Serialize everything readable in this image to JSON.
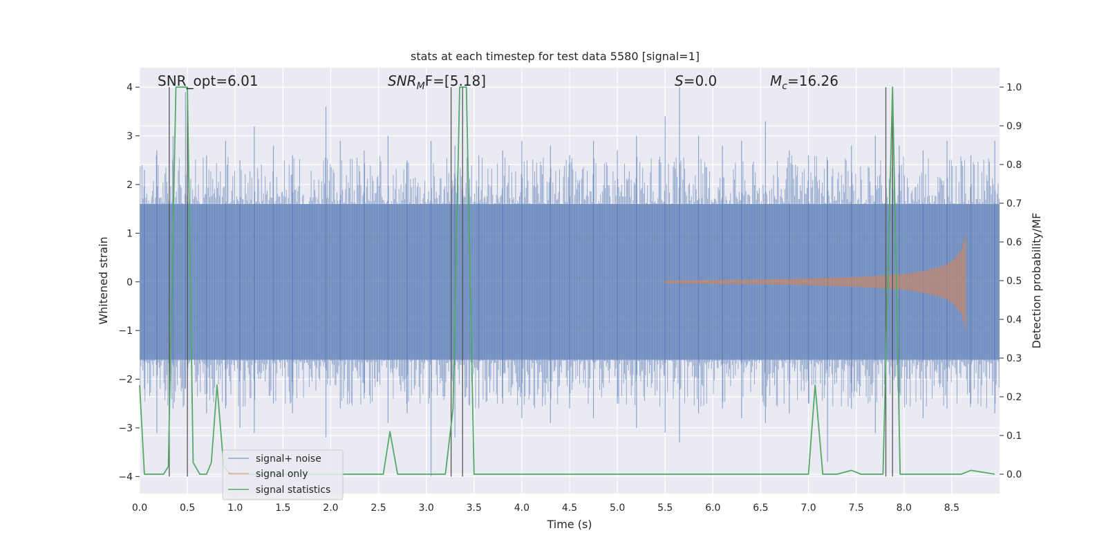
{
  "chart_data": {
    "type": "line",
    "title": "stats at each timestep for test data 5580 [signal=1]",
    "xlabel": "Time (s)",
    "ylabel_left": "Whitened strain",
    "ylabel_right": "Detection probability/MF",
    "xlim": [
      0.0,
      9.0
    ],
    "ylim_left": [
      -4.35,
      4.4
    ],
    "ylim_right": [
      -0.05,
      1.05
    ],
    "x_ticks": [
      "0.0",
      "0.5",
      "1.0",
      "1.5",
      "2.0",
      "2.5",
      "3.0",
      "3.5",
      "4.0",
      "4.5",
      "5.0",
      "5.5",
      "6.0",
      "6.5",
      "7.0",
      "7.5",
      "8.0",
      "8.5"
    ],
    "y_ticks_left": [
      "4",
      "3",
      "2",
      "1",
      "0",
      "−1",
      "−2",
      "−3",
      "−4"
    ],
    "y_ticks_right": [
      "1.0",
      "0.9",
      "0.8",
      "0.7",
      "0.6",
      "0.5",
      "0.4",
      "0.3",
      "0.2",
      "0.1",
      "0.0"
    ],
    "grid": true,
    "legend_position": "lower-left",
    "annotations": {
      "snr_opt": "SNR_opt=6.01",
      "snr_mf_prefix": "SNR",
      "snr_mf_sub": "M",
      "snr_mf_rest": "F=[5.18]",
      "s_var": "S",
      "s_rest": "=0.0",
      "mc_var": "M",
      "mc_sub": "c",
      "mc_rest": "=16.26"
    },
    "vertical_lines_x": [
      0.31,
      0.5,
      3.26,
      3.38,
      7.81,
      7.88
    ],
    "series": [
      {
        "name": "signal+ noise",
        "color": "#4c72b0",
        "note_axis": "left",
        "band_lower": -1.6,
        "band_upper": 1.6,
        "peak_x": [
          0.05,
          0.18,
          0.35,
          0.48,
          0.7,
          0.9,
          1.05,
          1.2,
          1.4,
          1.6,
          1.95,
          2.1,
          2.35,
          2.6,
          2.8,
          3.05,
          3.3,
          3.55,
          3.8,
          4.0,
          4.3,
          4.5,
          4.75,
          5.0,
          5.2,
          5.5,
          5.65,
          5.85,
          6.1,
          6.3,
          6.55,
          6.8,
          7.0,
          7.2,
          7.45,
          7.7,
          7.95,
          8.2,
          8.45,
          8.7,
          8.95
        ],
        "peak_high": [
          2.3,
          2.7,
          3.0,
          3.9,
          2.6,
          2.9,
          2.5,
          3.2,
          2.8,
          2.6,
          3.6,
          2.9,
          2.7,
          3.0,
          2.5,
          2.9,
          2.8,
          2.6,
          2.7,
          2.9,
          2.8,
          2.6,
          2.9,
          2.7,
          3.0,
          3.4,
          4.0,
          3.0,
          2.8,
          2.9,
          3.3,
          2.7,
          2.6,
          2.5,
          2.8,
          3.0,
          2.8,
          2.7,
          2.9,
          2.6,
          2.9
        ],
        "peak_low": [
          -2.2,
          -3.1,
          -2.6,
          -2.2,
          -2.7,
          -2.6,
          -3.0,
          -3.1,
          -2.5,
          -2.7,
          -3.2,
          -2.6,
          -2.4,
          -2.9,
          -2.7,
          -4.0,
          -3.2,
          -2.6,
          -2.5,
          -2.8,
          -2.9,
          -2.6,
          -2.8,
          -2.5,
          -3.0,
          -3.1,
          -3.3,
          -2.7,
          -2.6,
          -2.8,
          -2.9,
          -2.7,
          -2.5,
          -3.7,
          -2.6,
          -3.1,
          -2.9,
          -2.8,
          -2.6,
          -2.5,
          -2.7
        ]
      },
      {
        "name": "signal only",
        "color": "#dd8452",
        "note_axis": "left",
        "x": [
          5.5,
          6.0,
          6.5,
          7.0,
          7.5,
          8.0,
          8.2,
          8.4,
          8.5,
          8.6,
          8.65
        ],
        "amplitude": [
          0.03,
          0.04,
          0.05,
          0.07,
          0.1,
          0.16,
          0.22,
          0.32,
          0.42,
          0.65,
          1.0
        ]
      },
      {
        "name": "signal statistics",
        "color": "#55a868",
        "note_axis": "right",
        "x": [
          0.0,
          0.05,
          0.15,
          0.25,
          0.3,
          0.38,
          0.5,
          0.56,
          0.63,
          0.7,
          0.75,
          0.81,
          0.88,
          0.95,
          1.2,
          2.0,
          2.55,
          2.62,
          2.7,
          2.85,
          3.2,
          3.28,
          3.35,
          3.42,
          3.5,
          3.9,
          5.0,
          6.0,
          6.1,
          6.9,
          7.0,
          7.07,
          7.15,
          7.3,
          7.45,
          7.55,
          7.78,
          7.88,
          7.96,
          8.05,
          8.3,
          8.6,
          8.7,
          8.95
        ],
        "y": [
          0.23,
          0.0,
          0.0,
          0.0,
          0.02,
          1.0,
          1.0,
          0.03,
          0.0,
          0.0,
          0.03,
          0.23,
          0.02,
          0.0,
          0.0,
          0.0,
          0.0,
          0.11,
          0.0,
          0.0,
          0.0,
          0.17,
          1.0,
          1.0,
          0.0,
          0.0,
          0.0,
          0.0,
          0.0,
          0.0,
          0.0,
          0.23,
          0.0,
          0.0,
          0.01,
          0.0,
          0.0,
          1.0,
          0.0,
          0.0,
          0.0,
          0.0,
          0.01,
          0.0
        ]
      }
    ]
  }
}
